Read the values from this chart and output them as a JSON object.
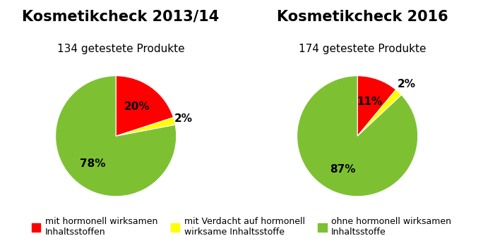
{
  "chart1_title": "Kosmetikcheck 2013/14",
  "chart1_subtitle": "134 getestete Produkte",
  "chart1_values": [
    20,
    2,
    78
  ],
  "chart1_labels": [
    "20%",
    "2%",
    "78%"
  ],
  "chart1_startangle": 90,
  "chart2_title": "Kosmetikcheck 2016",
  "chart2_subtitle": "174 getestete Produkte",
  "chart2_values": [
    11,
    2,
    87
  ],
  "chart2_labels": [
    "11%",
    "2%",
    "87%"
  ],
  "chart2_startangle": 90,
  "colors": [
    "#ff0000",
    "#ffff00",
    "#7dc133"
  ],
  "legend_labels": [
    "mit hormonell wirksamen\nInhaltsstoffen",
    "mit Verdacht auf hormonell\nwirksame Inhaltsstoffe",
    "ohne hormonell wirksamen\nInhaltsstoffe"
  ],
  "title_fontsize": 15,
  "subtitle_fontsize": 11,
  "label_fontsize": 11,
  "legend_fontsize": 9,
  "background_color": "#ffffff"
}
